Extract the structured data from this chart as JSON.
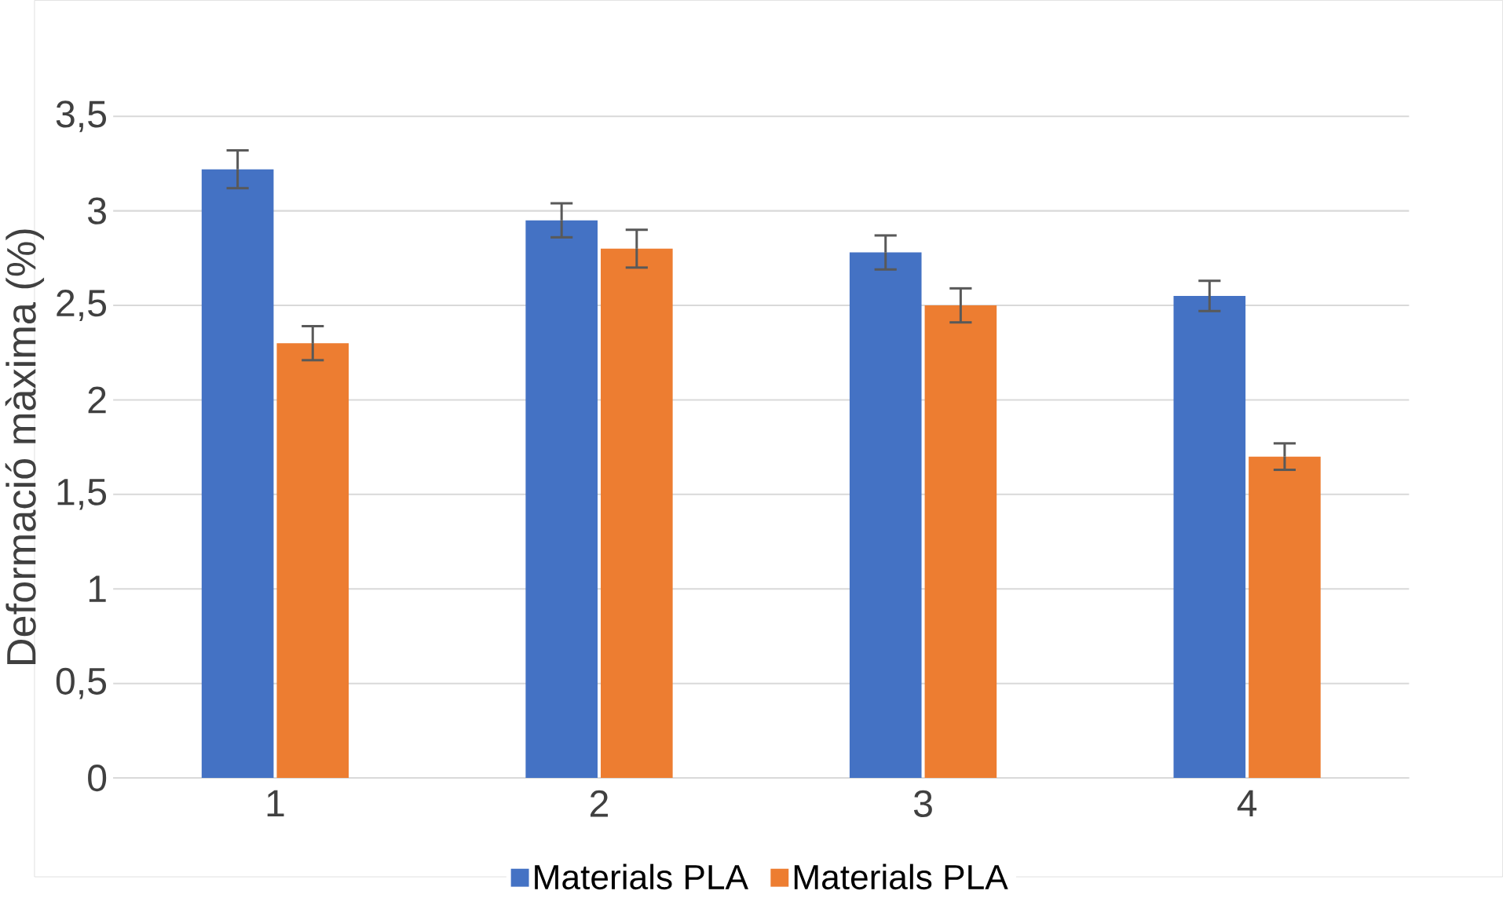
{
  "chart_data": {
    "type": "bar",
    "ylabel": "Deformació màxima (%)",
    "categories": [
      "1",
      "2",
      "3",
      "4"
    ],
    "series": [
      {
        "name": "Materials PLA",
        "color": "#4472c4",
        "values": [
          3.22,
          2.95,
          2.78,
          2.55
        ],
        "errors": [
          0.1,
          0.09,
          0.09,
          0.08
        ]
      },
      {
        "name": "Materials PLA",
        "color": "#ed7d31",
        "values": [
          2.3,
          2.8,
          2.5,
          1.7
        ],
        "errors": [
          0.09,
          0.1,
          0.09,
          0.07
        ]
      }
    ],
    "ylim": [
      0,
      3.5
    ],
    "yticks": [
      {
        "value": 0,
        "label": "0"
      },
      {
        "value": 0.5,
        "label": "0,5"
      },
      {
        "value": 1,
        "label": "1"
      },
      {
        "value": 1.5,
        "label": "1,5"
      },
      {
        "value": 2,
        "label": "2"
      },
      {
        "value": 2.5,
        "label": "2,5"
      },
      {
        "value": 3,
        "label": "3"
      },
      {
        "value": 3.5,
        "label": "3,5"
      }
    ],
    "grid": "y",
    "legend": "bottom"
  }
}
